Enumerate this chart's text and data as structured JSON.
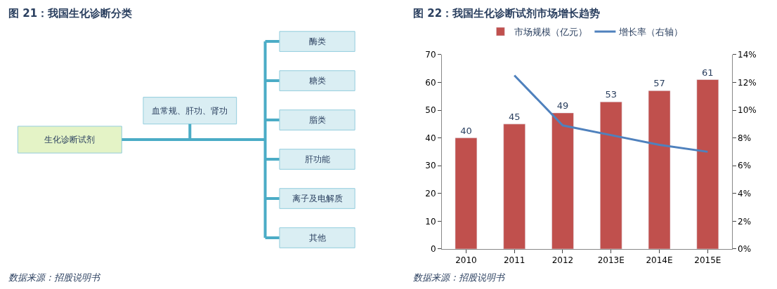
{
  "chart_data": [
    {
      "type": "other",
      "title": "图 21：我国生化诊断分类",
      "annotations": [
        "生化诊断试剂",
        "血常规、肝功、肾功",
        "酶类",
        "糖类",
        "脂类",
        "肝功能",
        "离子及电解质",
        "其他",
        "数据来源：招股说明书"
      ]
    },
    {
      "type": "bar",
      "title": "图 22：我国生化诊断试剂市场增长趋势",
      "categories": [
        "2010",
        "2011",
        "2012",
        "2013E",
        "2014E",
        "2015E"
      ],
      "series": [
        {
          "name": "市场规模（亿元）",
          "type": "bar",
          "color": "#c0504d",
          "values": [
            40,
            45,
            49,
            53,
            57,
            61
          ],
          "value_labels": [
            "40",
            "45",
            "49",
            "53",
            "57",
            "61"
          ]
        },
        {
          "name": "增长率（右轴）",
          "type": "line",
          "axis": "y2",
          "color": "#4f81bd",
          "marker": "none",
          "values": [
            null,
            12.5,
            8.9,
            8.2,
            7.5,
            7.0
          ]
        }
      ],
      "ylim": [
        0,
        70
      ],
      "yticks": [
        0,
        10,
        20,
        30,
        40,
        50,
        60,
        70
      ],
      "y2lim": [
        0,
        14
      ],
      "y2ticks": [
        {
          "value": 0,
          "label": "0%"
        },
        {
          "value": 2,
          "label": "2%"
        },
        {
          "value": 4,
          "label": "4%"
        },
        {
          "value": 6,
          "label": "6%"
        },
        {
          "value": 8,
          "label": "8%"
        },
        {
          "value": 10,
          "label": "10%"
        },
        {
          "value": 12,
          "label": "12%"
        },
        {
          "value": 14,
          "label": "14%"
        }
      ],
      "legend": "top",
      "annotations": [
        "数据来源：招股说明书"
      ]
    }
  ]
}
